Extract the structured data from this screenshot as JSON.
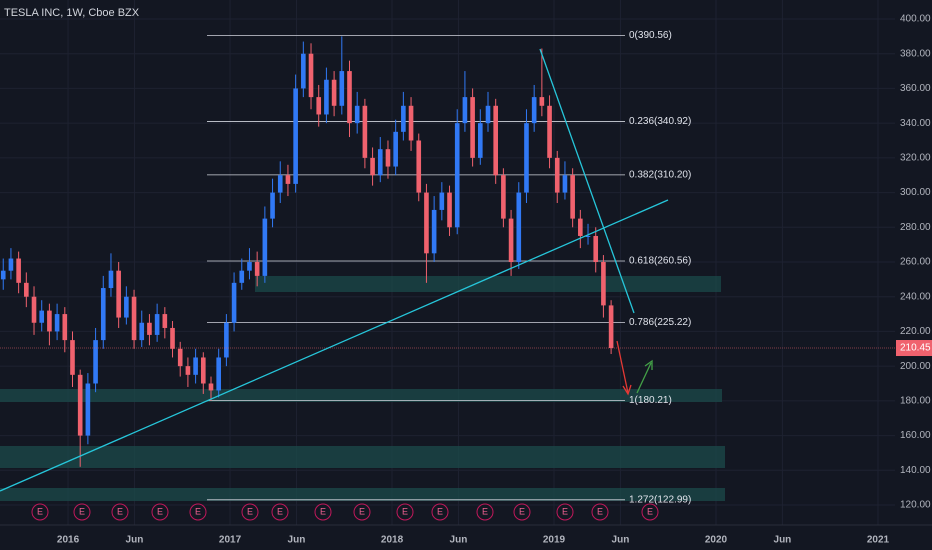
{
  "chart_data": {
    "type": "candlestick",
    "title": "TESLA INC, 1W, Cboe BZX",
    "x": [
      2015.6,
      2015.6475,
      2015.695,
      2015.7425,
      2015.79,
      2015.8375,
      2015.885,
      2015.9325,
      2015.98,
      2016.0275,
      2016.075,
      2016.1225,
      2016.17,
      2016.2175,
      2016.265,
      2016.3125,
      2016.36,
      2016.4075,
      2016.455,
      2016.5025,
      2016.55,
      2016.5975,
      2016.645,
      2016.6925,
      2016.74,
      2016.7875,
      2016.835,
      2016.8825,
      2016.93,
      2016.9775,
      2017.025,
      2017.0725,
      2017.12,
      2017.1675,
      2017.215,
      2017.2625,
      2017.31,
      2017.3575,
      2017.405,
      2017.4525,
      2017.5,
      2017.5475,
      2017.595,
      2017.6425,
      2017.69,
      2017.7375,
      2017.785,
      2017.8325,
      2017.88,
      2017.9275,
      2017.975,
      2018.0225,
      2018.07,
      2018.1175,
      2018.165,
      2018.2125,
      2018.26,
      2018.3075,
      2018.355,
      2018.4025,
      2018.45,
      2018.4975,
      2018.545,
      2018.5925,
      2018.64,
      2018.6875,
      2018.735,
      2018.7825,
      2018.83,
      2018.8775,
      2018.925,
      2018.9725,
      2019.02,
      2019.0675,
      2019.115,
      2019.1625,
      2019.21,
      2019.2575,
      2019.305,
      2019.3525
    ],
    "open": [
      250,
      255,
      262,
      248,
      240,
      225,
      232,
      220,
      230,
      215,
      195,
      160,
      190,
      215,
      245,
      255,
      228,
      240,
      215,
      225,
      218,
      230,
      222,
      210,
      200,
      195,
      205,
      190,
      186,
      205,
      225,
      248,
      255,
      260,
      252,
      285,
      300,
      310,
      305,
      360,
      380,
      355,
      345,
      365,
      350,
      370,
      340,
      350,
      320,
      310,
      325,
      315,
      335,
      350,
      330,
      300,
      265,
      290,
      300,
      280,
      340,
      355,
      320,
      340,
      350,
      310,
      285,
      260,
      300,
      340,
      355,
      350,
      320,
      300,
      310,
      285,
      275,
      275,
      260,
      235
    ],
    "high": [
      262,
      268,
      266,
      254,
      246,
      238,
      236,
      236,
      234,
      220,
      198,
      196,
      222,
      252,
      265,
      260,
      246,
      244,
      232,
      230,
      236,
      234,
      226,
      214,
      205,
      210,
      208,
      194,
      210,
      230,
      254,
      262,
      268,
      266,
      292,
      308,
      318,
      316,
      368,
      387,
      386,
      362,
      372,
      370,
      390,
      376,
      358,
      354,
      326,
      332,
      330,
      342,
      358,
      355,
      334,
      305,
      298,
      306,
      304,
      348,
      370,
      360,
      348,
      358,
      354,
      314,
      290,
      306,
      348,
      362,
      383,
      356,
      324,
      318,
      314,
      290,
      282,
      280,
      264,
      238
    ],
    "low": [
      244,
      250,
      242,
      234,
      218,
      220,
      212,
      215,
      208,
      188,
      142,
      155,
      185,
      210,
      240,
      222,
      224,
      210,
      211,
      212,
      214,
      216,
      205,
      194,
      188,
      190,
      184,
      180,
      182,
      200,
      220,
      244,
      250,
      246,
      248,
      280,
      294,
      298,
      300,
      355,
      348,
      338,
      340,
      344,
      345,
      332,
      334,
      314,
      304,
      306,
      308,
      310,
      330,
      324,
      295,
      248,
      260,
      284,
      275,
      276,
      335,
      315,
      316,
      335,
      305,
      280,
      252,
      256,
      294,
      335,
      344,
      314,
      294,
      296,
      280,
      268,
      270,
      254,
      228,
      207
    ],
    "close": [
      255,
      262,
      248,
      240,
      225,
      232,
      220,
      230,
      215,
      195,
      160,
      190,
      215,
      245,
      255,
      228,
      240,
      215,
      225,
      218,
      230,
      222,
      210,
      200,
      195,
      205,
      190,
      186,
      205,
      225,
      248,
      255,
      260,
      252,
      285,
      300,
      310,
      305,
      360,
      380,
      355,
      345,
      365,
      350,
      370,
      340,
      350,
      320,
      310,
      325,
      315,
      335,
      350,
      330,
      300,
      265,
      290,
      300,
      280,
      340,
      355,
      320,
      340,
      350,
      310,
      285,
      260,
      300,
      340,
      355,
      350,
      320,
      300,
      310,
      285,
      275,
      275,
      260,
      235,
      210.45
    ],
    "up_color": "#3179f5",
    "down_color": "#f0626e",
    "xlim": [
      2015.58,
      2021.105
    ],
    "ylim": [
      108.48,
      410.95
    ],
    "xticks": [
      {
        "value": 2016,
        "label": "2016"
      },
      {
        "value": 2016.41,
        "label": "Jun"
      },
      {
        "value": 2017,
        "label": "2017"
      },
      {
        "value": 2017.41,
        "label": "Jun"
      },
      {
        "value": 2018,
        "label": "2018"
      },
      {
        "value": 2018.41,
        "label": "Jun"
      },
      {
        "value": 2019,
        "label": "2019"
      },
      {
        "value": 2019.41,
        "label": "Jun"
      },
      {
        "value": 2020,
        "label": "2020"
      },
      {
        "value": 2020.41,
        "label": "Jun"
      },
      {
        "value": 2021,
        "label": "2021"
      }
    ],
    "yticks": [
      {
        "value": 120,
        "label": "120.00"
      },
      {
        "value": 140,
        "label": "140.00"
      },
      {
        "value": 160,
        "label": "160.00"
      },
      {
        "value": 180,
        "label": "180.00"
      },
      {
        "value": 200,
        "label": "200.00"
      },
      {
        "value": 220,
        "label": "220.00"
      },
      {
        "value": 240,
        "label": "240.00"
      },
      {
        "value": 260,
        "label": "260.00"
      },
      {
        "value": 280,
        "label": "280.00"
      },
      {
        "value": 300,
        "label": "300.00"
      },
      {
        "value": 320,
        "label": "320.00"
      },
      {
        "value": 340,
        "label": "340.00"
      },
      {
        "value": 360,
        "label": "360.00"
      },
      {
        "value": 380,
        "label": "380.00"
      },
      {
        "value": 400,
        "label": "400.00"
      }
    ],
    "grid": true,
    "fib_levels": [
      {
        "value": 390.56,
        "label": "0(390.56)"
      },
      {
        "value": 340.92,
        "label": "0.236(340.92)"
      },
      {
        "value": 310.2,
        "label": "0.382(310.20)"
      },
      {
        "value": 260.56,
        "label": "0.618(260.56)"
      },
      {
        "value": 225.22,
        "label": "0.786(225.22)"
      },
      {
        "value": 180.21,
        "label": "1(180.21)"
      },
      {
        "value": 122.99,
        "label": "1.272(122.99)"
      }
    ],
    "earnings": [
      "E",
      "E",
      "E",
      "E",
      "E",
      "E",
      "E",
      "E",
      "E",
      "E",
      "E",
      "E",
      "E",
      "E",
      "E",
      "E"
    ]
  }
}
